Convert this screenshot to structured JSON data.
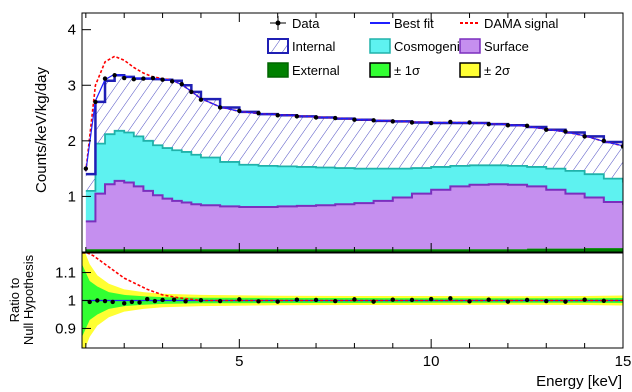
{
  "chart_data": [
    {
      "type": "area",
      "x_range": [
        0.9,
        15
      ],
      "ylim": [
        0,
        4.3
      ],
      "xlabel": "Energy [keV]",
      "ylabel": "Counts/keV/kg/day",
      "x_ticks": [
        5,
        10,
        15
      ],
      "y_ticks": [
        1,
        2,
        3,
        4
      ],
      "x_grid": [
        1,
        1.25,
        1.5,
        1.75,
        2,
        2.25,
        2.5,
        2.75,
        3,
        3.25,
        3.5,
        3.75,
        4,
        4.5,
        5,
        5.5,
        6,
        6.5,
        7,
        7.5,
        8,
        8.5,
        9,
        9.5,
        10,
        10.5,
        11,
        11.5,
        12,
        12.5,
        13,
        13.5,
        14,
        14.5,
        15
      ],
      "series": [
        {
          "name": "External",
          "color": "#008000",
          "values": [
            0.05,
            0.05,
            0.05,
            0.05,
            0.05,
            0.05,
            0.05,
            0.05,
            0.05,
            0.05,
            0.05,
            0.05,
            0.05,
            0.05,
            0.05,
            0.05,
            0.05,
            0.05,
            0.05,
            0.05,
            0.05,
            0.05,
            0.05,
            0.05,
            0.05,
            0.05,
            0.05,
            0.05,
            0.05,
            0.06,
            0.06,
            0.06,
            0.07,
            0.07,
            0.07
          ]
        },
        {
          "name": "Surface",
          "color": "#c58fef",
          "values": [
            0.55,
            1.05,
            1.22,
            1.28,
            1.25,
            1.18,
            1.1,
            1.02,
            0.96,
            0.92,
            0.89,
            0.86,
            0.84,
            0.82,
            0.81,
            0.81,
            0.82,
            0.83,
            0.84,
            0.86,
            0.88,
            0.92,
            0.98,
            1.05,
            1.12,
            1.18,
            1.21,
            1.22,
            1.21,
            1.18,
            1.12,
            1.05,
            0.98,
            0.9,
            0.85
          ]
        },
        {
          "name": "Cosmogenic",
          "color": "#5ef2f0",
          "values": [
            1.1,
            1.95,
            2.12,
            2.18,
            2.15,
            2.08,
            2.0,
            1.92,
            1.87,
            1.83,
            1.8,
            1.75,
            1.7,
            1.62,
            1.57,
            1.55,
            1.54,
            1.53,
            1.52,
            1.51,
            1.5,
            1.5,
            1.5,
            1.51,
            1.53,
            1.55,
            1.56,
            1.56,
            1.55,
            1.53,
            1.5,
            1.46,
            1.4,
            1.32,
            1.25
          ]
        },
        {
          "name": "Internal",
          "color": "#1f1fb4",
          "values": [
            1.4,
            2.7,
            3.08,
            3.18,
            3.15,
            3.12,
            3.12,
            3.11,
            3.1,
            3.08,
            3.0,
            2.88,
            2.75,
            2.6,
            2.52,
            2.48,
            2.46,
            2.44,
            2.42,
            2.4,
            2.38,
            2.36,
            2.35,
            2.33,
            2.32,
            2.32,
            2.32,
            2.3,
            2.28,
            2.25,
            2.2,
            2.15,
            2.08,
            1.98,
            1.9
          ]
        },
        {
          "name": "Best fit",
          "color": "#1f1fff",
          "values": [
            1.45,
            2.72,
            3.1,
            3.2,
            3.17,
            3.13,
            3.13,
            3.12,
            3.11,
            3.09,
            3.01,
            2.89,
            2.76,
            2.61,
            2.53,
            2.49,
            2.47,
            2.45,
            2.43,
            2.41,
            2.39,
            2.37,
            2.36,
            2.34,
            2.33,
            2.33,
            2.33,
            2.31,
            2.29,
            2.26,
            2.21,
            2.16,
            2.09,
            1.99,
            1.91
          ]
        },
        {
          "name": "DAMA signal",
          "color": "#ff0000",
          "values": [
            1.45,
            3.0,
            3.42,
            3.52,
            3.45,
            3.32,
            3.22,
            3.15,
            3.12,
            3.09,
            3.01,
            2.89,
            2.76,
            2.61,
            2.53,
            2.49,
            2.47,
            2.45,
            2.43,
            2.41,
            2.39,
            2.37,
            2.36,
            2.34,
            2.33,
            2.33,
            2.33,
            2.31,
            2.29,
            2.26,
            2.21,
            2.16,
            2.09,
            1.99,
            1.91
          ]
        },
        {
          "name": "Data",
          "color": "#000000",
          "values": [
            1.5,
            2.7,
            3.12,
            3.18,
            3.13,
            3.11,
            3.12,
            3.13,
            3.1,
            3.07,
            3.02,
            2.88,
            2.74,
            2.6,
            2.54,
            2.5,
            2.46,
            2.44,
            2.42,
            2.41,
            2.38,
            2.37,
            2.35,
            2.33,
            2.32,
            2.34,
            2.33,
            2.3,
            2.28,
            2.27,
            2.2,
            2.17,
            2.08,
            2.0,
            1.9
          ]
        }
      ],
      "legend": {
        "placement": "top",
        "entries": [
          {
            "label": "Data",
            "symbol": "marker"
          },
          {
            "label": "Best fit",
            "symbol": "line",
            "color": "#1f1fff"
          },
          {
            "label": "DAMA signal",
            "symbol": "dashed",
            "color": "#ff0000"
          },
          {
            "label": "Internal",
            "symbol": "hatch",
            "color": "#1f1fb4"
          },
          {
            "label": "Cosmogenic",
            "symbol": "box",
            "color": "#5ef2f0",
            "edge": "#20b2aa"
          },
          {
            "label": "Surface",
            "symbol": "box",
            "color": "#c58fef",
            "edge": "#7b2fbe"
          },
          {
            "label": "External",
            "symbol": "box",
            "color": "#008000",
            "edge": "#006400"
          },
          {
            "label": "± 1σ",
            "symbol": "box",
            "color": "#32ff32",
            "edge": "#000000"
          },
          {
            "label": "± 2σ",
            "symbol": "box",
            "color": "#ffff33",
            "edge": "#000000"
          }
        ]
      }
    },
    {
      "type": "scatter",
      "x_range": [
        0.9,
        15
      ],
      "ylim": [
        0.83,
        1.17
      ],
      "xlabel": "Energy [keV]",
      "ylabel": [
        "Ratio to",
        "Null Hypothesis"
      ],
      "x_ticks": [
        5,
        10,
        15
      ],
      "y_ticks": [
        0.9,
        1,
        1.1
      ],
      "ratio_points": {
        "x": [
          1.1,
          1.3,
          1.5,
          1.7,
          2.0,
          2.2,
          2.4,
          2.6,
          2.8,
          3.0,
          3.3,
          3.6,
          4.0,
          4.5,
          5.0,
          5.5,
          6.0,
          6.5,
          7.0,
          7.5,
          8.0,
          8.5,
          9.0,
          9.5,
          10.0,
          10.5,
          11.0,
          11.5,
          12.0,
          12.5,
          13.0,
          13.5,
          14.0,
          14.5
        ],
        "y": [
          0.995,
          1.0,
          0.998,
          0.995,
          0.99,
          0.995,
          0.993,
          1.005,
          0.998,
          1.002,
          1.003,
          0.997,
          1.001,
          0.998,
          1.004,
          0.997,
          0.996,
          1.003,
          1.002,
          0.998,
          1.004,
          0.996,
          1.003,
          1.002,
          1.005,
          1.008,
          0.997,
          1.003,
          0.996,
          1.002,
          0.998,
          0.996,
          1.003,
          0.999
        ]
      },
      "dama_ratio": {
        "x": [
          0.9,
          1.05,
          1.2,
          1.4,
          1.6,
          1.8,
          2.0,
          2.3,
          2.6,
          3.0,
          3.4,
          4.0,
          5.0,
          15.0
        ],
        "y": [
          1.17,
          1.17,
          1.16,
          1.14,
          1.12,
          1.1,
          1.08,
          1.06,
          1.04,
          1.02,
          1.01,
          1.0,
          1.0,
          1.0
        ]
      },
      "bands": {
        "x": [
          0.9,
          1.1,
          1.3,
          1.6,
          2.0,
          2.5,
          3.0,
          4.0,
          6.0,
          8.0,
          10.0,
          12.0,
          14.0,
          15.0
        ],
        "one_sigma": [
          0.13,
          0.07,
          0.05,
          0.03,
          0.02,
          0.015,
          0.012,
          0.01,
          0.009,
          0.009,
          0.008,
          0.008,
          0.008,
          0.009
        ],
        "two_sigma": [
          0.2,
          0.13,
          0.09,
          0.06,
          0.04,
          0.03,
          0.024,
          0.02,
          0.017,
          0.016,
          0.016,
          0.015,
          0.016,
          0.018
        ]
      }
    }
  ]
}
